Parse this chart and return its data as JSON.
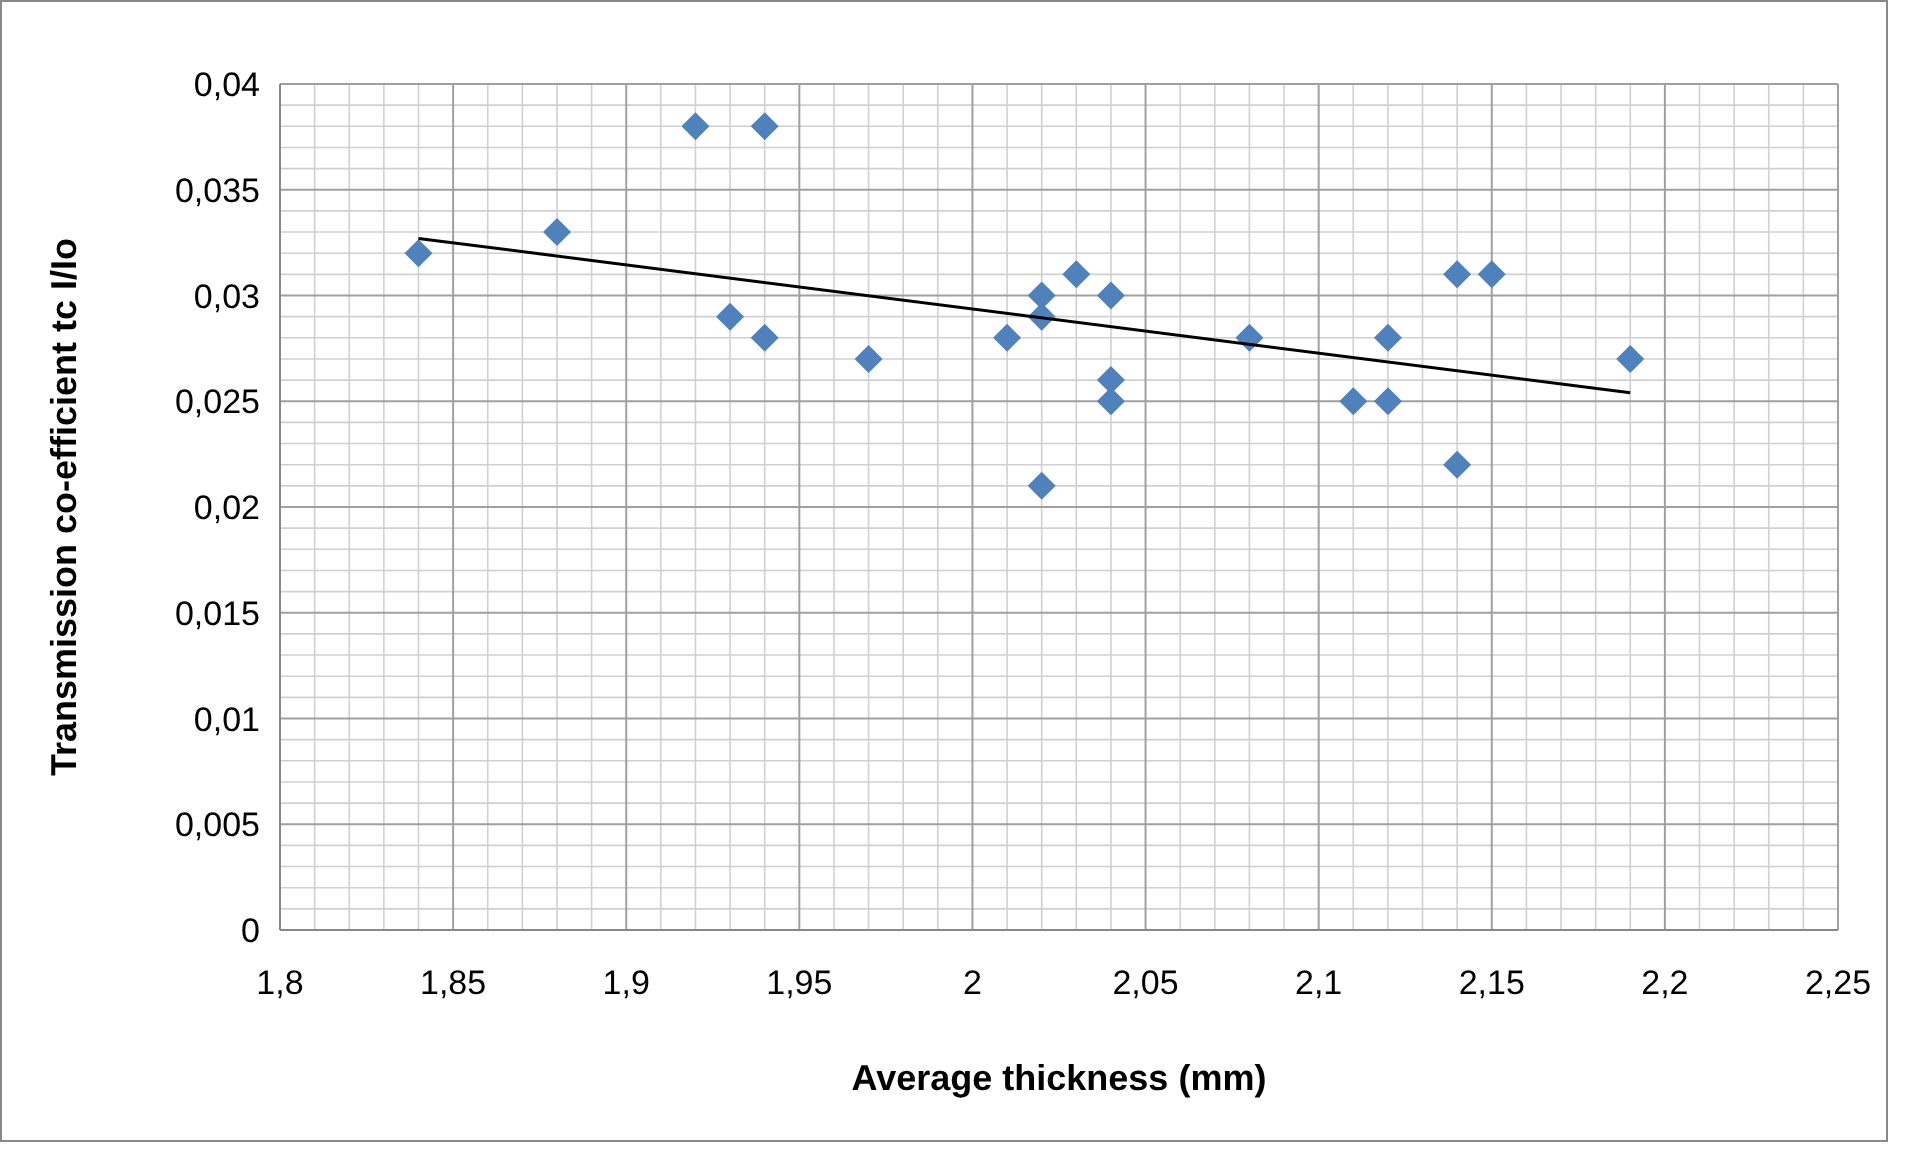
{
  "chart_data": {
    "type": "scatter",
    "xlabel": "Average thickness (mm)",
    "ylabel": "Transmission co-efficient tc I/Io",
    "xlim": [
      1.8,
      2.25
    ],
    "xticks": [
      {
        "value": 1.8,
        "label": "1,8"
      },
      {
        "value": 1.85,
        "label": "1,85"
      },
      {
        "value": 1.9,
        "label": "1,9"
      },
      {
        "value": 1.95,
        "label": "1,95"
      },
      2,
      {
        "value": 2.05,
        "label": "2,05"
      },
      {
        "value": 2.1,
        "label": "2,1"
      },
      {
        "value": 2.15,
        "label": "2,15"
      },
      {
        "value": 2.2,
        "label": "2,2"
      },
      {
        "value": 2.25,
        "label": "2,25"
      }
    ],
    "ylim": [
      0,
      0.04
    ],
    "yticks": [
      0,
      {
        "value": 0.005,
        "label": "0,005"
      },
      {
        "value": 0.01,
        "label": "0,01"
      },
      {
        "value": 0.015,
        "label": "0,015"
      },
      {
        "value": 0.02,
        "label": "0,02"
      },
      {
        "value": 0.025,
        "label": "0,025"
      },
      {
        "value": 0.03,
        "label": "0,03"
      },
      {
        "value": 0.035,
        "label": "0,035"
      },
      {
        "value": 0.04,
        "label": "0,04"
      }
    ],
    "grid": true,
    "series": [
      {
        "type": "scatter",
        "marker": "diamond",
        "color": "#4f81bd",
        "x": [
          1.84,
          1.88,
          1.92,
          1.94,
          1.93,
          1.94,
          1.97,
          2.01,
          2.02,
          2.02,
          2.03,
          2.04,
          2.04,
          2.04,
          2.02,
          2.08,
          2.11,
          2.12,
          2.12,
          2.14,
          2.15,
          2.14,
          2.19
        ],
        "values": [
          0.032,
          0.033,
          0.038,
          0.038,
          0.029,
          0.028,
          0.027,
          0.028,
          0.03,
          0.029,
          0.031,
          0.03,
          0.026,
          0.025,
          0.021,
          0.028,
          0.025,
          0.028,
          0.025,
          0.031,
          0.031,
          0.022,
          0.027
        ]
      },
      {
        "type": "line",
        "marker": "none",
        "line_style": "solid",
        "color": "#000000",
        "x": [
          1.84,
          2.19
        ],
        "values": [
          0.0327,
          0.0254
        ]
      }
    ]
  }
}
